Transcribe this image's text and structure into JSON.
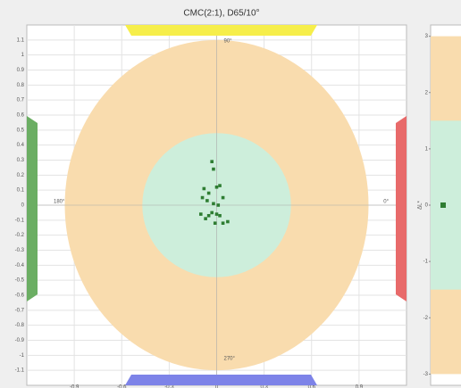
{
  "chart_data": [
    {
      "type": "scatter",
      "title": "CMC(2:1), D65/10°",
      "xlim": [
        -1.2,
        1.2
      ],
      "xticks": [
        -0.9,
        -0.6,
        -0.3,
        0,
        0.3,
        0.6,
        0.9
      ],
      "ylim": [
        -1.2,
        1.2
      ],
      "yticks": [
        -1.1,
        -1,
        -0.9,
        -0.8,
        -0.7,
        -0.6,
        -0.5,
        -0.4,
        -0.3,
        -0.2,
        -0.1,
        0,
        0.1,
        0.2,
        0.3,
        0.4,
        0.5,
        0.6,
        0.7,
        0.8,
        0.9,
        1,
        1.1
      ],
      "grid": true,
      "ellipses": [
        {
          "color": "#f9dcae",
          "rx": 0.96,
          "ry": 1.1
        },
        {
          "color": "#cdeedb",
          "rx": 0.47,
          "ry": 0.48
        }
      ],
      "annotations": [
        "90°",
        "0°",
        "180°",
        "270°"
      ],
      "color": "#2e7d32",
      "x": [
        -0.03,
        -0.02,
        -0.08,
        -0.05,
        0.0,
        0.02,
        -0.09,
        -0.06,
        -0.02,
        0.01,
        0.04,
        -0.03,
        0.0,
        0.02,
        -0.05,
        -0.07,
        -0.01,
        0.04,
        -0.1,
        0.07
      ],
      "values": [
        0.29,
        0.24,
        0.11,
        0.08,
        0.12,
        0.13,
        0.05,
        0.03,
        0.01,
        0.0,
        0.05,
        -0.05,
        -0.06,
        -0.07,
        -0.07,
        -0.09,
        -0.12,
        -0.12,
        -0.06,
        -0.11
      ]
    },
    {
      "type": "band",
      "y_label": "ΔL*",
      "ylim": [
        -3.2,
        3.2
      ],
      "yticks": [
        -3,
        -2,
        -1,
        0,
        1,
        2,
        3
      ],
      "bands": [
        {
          "color": "#f9dcae",
          "limit": 3
        },
        {
          "color": "#cdeedb",
          "limit": 1.5
        }
      ],
      "color": "#2e7d32",
      "x": [
        0
      ],
      "values": [
        0
      ]
    }
  ]
}
